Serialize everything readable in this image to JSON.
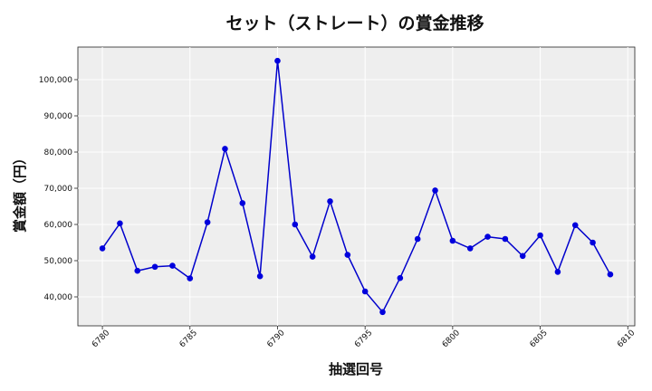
{
  "chart_data": {
    "type": "line",
    "title": "セット（ストレート）の賞金推移",
    "xlabel": "抽選回号",
    "ylabel": "賞金額（円）",
    "xlim": [
      6778.6,
      6810.4
    ],
    "ylim": [
      32000,
      109000
    ],
    "x_ticks": [
      6780,
      6785,
      6790,
      6795,
      6800,
      6805,
      6810
    ],
    "y_ticks": [
      40000,
      50000,
      60000,
      70000,
      80000,
      90000,
      100000
    ],
    "x_tick_labels": [
      "6780",
      "6785",
      "6790",
      "6795",
      "6800",
      "6805",
      "6810"
    ],
    "y_tick_labels": [
      "40,000",
      "50,000",
      "60,000",
      "70,000",
      "80,000",
      "90,000",
      "100,000"
    ],
    "grid": true,
    "colors": {
      "line": "#0000cc",
      "marker": "#0000dd",
      "plot_bg": "#eeeeee",
      "grid": "#ffffff"
    },
    "series": [
      {
        "x": [
          6780,
          6781,
          6782,
          6783,
          6784,
          6785,
          6786,
          6787,
          6788,
          6789,
          6790,
          6791,
          6792,
          6793,
          6794,
          6795,
          6796,
          6797,
          6798,
          6799,
          6800,
          6801,
          6802,
          6803,
          6804,
          6805,
          6806,
          6807,
          6808,
          6809
        ],
        "values": [
          53400,
          60300,
          47200,
          48300,
          48600,
          45100,
          60600,
          80900,
          65900,
          45700,
          105200,
          60000,
          51100,
          66400,
          51600,
          41500,
          35800,
          45200,
          56000,
          69400,
          55500,
          53400,
          56600,
          56000,
          51300,
          57000,
          46900,
          59800,
          55000,
          46200
        ]
      }
    ]
  }
}
